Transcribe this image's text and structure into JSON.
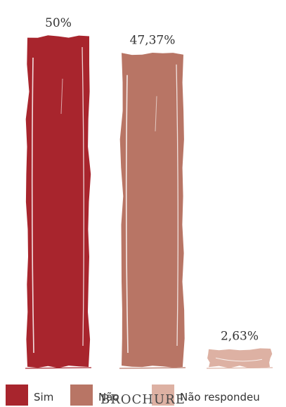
{
  "chart_data": {
    "type": "bar",
    "categories": [
      "Sim",
      "Não",
      "Não respondeu"
    ],
    "values": [
      50,
      47.37,
      2.63
    ],
    "value_labels": [
      "50%",
      "47,37%",
      "2,63%"
    ],
    "colors": [
      "#a8252d",
      "#b87565",
      "#ddb1a3"
    ],
    "ylim": [
      0,
      50
    ],
    "grid": false,
    "legend_position": "bottom",
    "overlay_text": "BROCHURE"
  }
}
